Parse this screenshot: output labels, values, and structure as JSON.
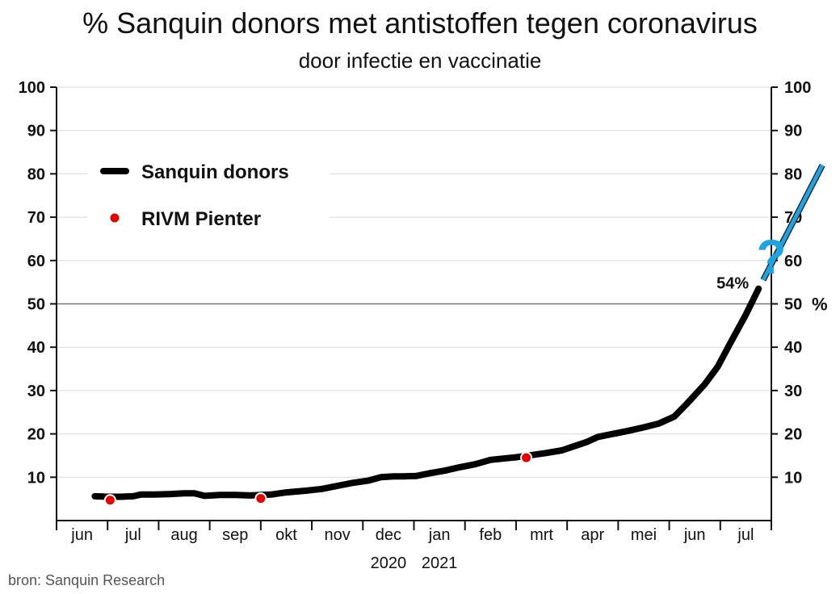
{
  "chart_data": {
    "type": "line",
    "title": "% Sanquin donors met antistoffen tegen coronavirus",
    "subtitle": "door infectie en vaccinatie",
    "source": "bron: Sanquin Research",
    "ylim": [
      0,
      100
    ],
    "yticks": [
      10,
      20,
      30,
      40,
      50,
      60,
      70,
      80,
      90,
      100
    ],
    "y_unit_right": "%",
    "x_months": [
      "jun",
      "jul",
      "aug",
      "sep",
      "okt",
      "nov",
      "dec",
      "jan",
      "feb",
      "mrt",
      "apr",
      "mei",
      "jun",
      "jul"
    ],
    "x_years": [
      "2020",
      "2021"
    ],
    "grid": true,
    "reference_line": 50,
    "legend": {
      "placement": "top-left",
      "items": [
        "Sanquin donors",
        "RIVM Pienter"
      ]
    },
    "series": [
      {
        "name": "Sanquin donors",
        "color": "#000000",
        "points": [
          [
            0.75,
            5.6
          ],
          [
            1.0,
            5.5
          ],
          [
            1.25,
            5.5
          ],
          [
            1.5,
            5.6
          ],
          [
            1.65,
            6.0
          ],
          [
            1.9,
            6.0
          ],
          [
            2.2,
            6.1
          ],
          [
            2.5,
            6.3
          ],
          [
            2.7,
            6.3
          ],
          [
            2.9,
            5.7
          ],
          [
            3.2,
            5.9
          ],
          [
            3.5,
            5.9
          ],
          [
            3.8,
            5.8
          ],
          [
            4.2,
            6.0
          ],
          [
            4.5,
            6.5
          ],
          [
            4.9,
            6.9
          ],
          [
            5.2,
            7.3
          ],
          [
            5.5,
            8.0
          ],
          [
            5.8,
            8.7
          ],
          [
            6.1,
            9.2
          ],
          [
            6.35,
            10.0
          ],
          [
            6.6,
            10.2
          ],
          [
            6.8,
            10.2
          ],
          [
            7.05,
            10.3
          ],
          [
            7.3,
            10.9
          ],
          [
            7.6,
            11.5
          ],
          [
            7.9,
            12.3
          ],
          [
            8.2,
            13.0
          ],
          [
            8.5,
            14.0
          ],
          [
            8.75,
            14.3
          ],
          [
            9.0,
            14.6
          ],
          [
            9.3,
            15.1
          ],
          [
            9.6,
            15.6
          ],
          [
            9.9,
            16.2
          ],
          [
            10.1,
            17.0
          ],
          [
            10.4,
            18.2
          ],
          [
            10.6,
            19.3
          ],
          [
            10.9,
            20.0
          ],
          [
            11.2,
            20.7
          ],
          [
            11.5,
            21.5
          ],
          [
            11.8,
            22.4
          ],
          [
            12.1,
            24.0
          ],
          [
            12.35,
            27.0
          ],
          [
            12.7,
            31.5
          ],
          [
            12.95,
            35.5
          ],
          [
            13.2,
            41.0
          ],
          [
            13.5,
            47.5
          ],
          [
            13.75,
            53.5
          ]
        ]
      },
      {
        "name": "projection",
        "color": "#1fa3e0",
        "points": [
          [
            13.84,
            55.5
          ],
          [
            15.0,
            82.0
          ]
        ]
      },
      {
        "name": "RIVM Pienter",
        "color": "#e60000",
        "markers": [
          [
            1.05,
            4.7
          ],
          [
            4.0,
            5.1
          ],
          [
            9.2,
            14.5
          ]
        ]
      }
    ],
    "annotations": {
      "last_value_label": "54%",
      "question_mark": "?"
    }
  }
}
